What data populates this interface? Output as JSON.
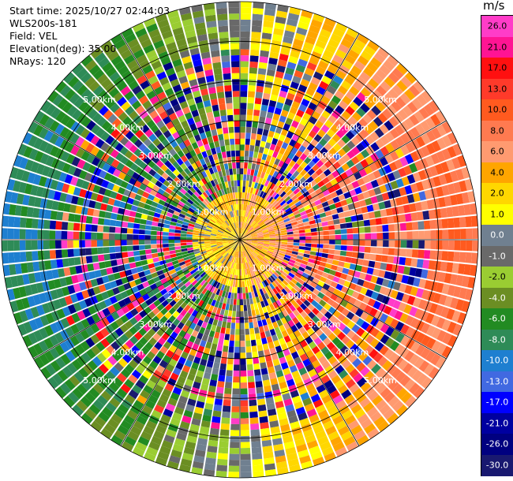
{
  "info": {
    "start_time": "Start time: 2025/10/27 02:44:03",
    "station": "WLS200s-181",
    "field": "Field: VEL",
    "elevation": "Elevation(deg): 35.00",
    "nrays": "NRays: 120"
  },
  "colorbar": {
    "unit": "m/s",
    "ticks": [
      "26.0",
      "21.0",
      "17.0",
      "13.0",
      "10.0",
      "8.0",
      "6.0",
      "4.0",
      "2.0",
      "1.0",
      "0.0",
      "-1.0",
      "-2.0",
      "-4.0",
      "-6.0",
      "-8.0",
      "-10.0",
      "-13.0",
      "-17.0",
      "-21.0",
      "-26.0",
      "-30.0"
    ],
    "colors": [
      "#ff3cc8",
      "#ff1493",
      "#ff1010",
      "#ff3a2a",
      "#ff5a1f",
      "#ff7a50",
      "#ff9a70",
      "#ffa500",
      "#ffd700",
      "#ffff00",
      "#708090",
      "#696969",
      "#9acd32",
      "#6b8e23",
      "#228b22",
      "#2e8b57",
      "#1e7fd0",
      "#4169e1",
      "#0000ff",
      "#0000a0",
      "#000080",
      "#191970"
    ],
    "label_text": [
      "#000",
      "#000",
      "#000",
      "#000",
      "#000",
      "#000",
      "#000",
      "#000",
      "#000",
      "#000",
      "#fff",
      "#fff",
      "#000",
      "#fff",
      "#fff",
      "#fff",
      "#fff",
      "#fff",
      "#fff",
      "#fff",
      "#fff",
      "#fff"
    ]
  },
  "chart_data": {
    "type": "heatmap",
    "subtype": "ppi-polar",
    "field": "VEL",
    "units": "m/s",
    "nrays": 120,
    "elevation_deg": 35.0,
    "max_range_km": 6.0,
    "range_rings_km": [
      1,
      2,
      3,
      4,
      5,
      6
    ],
    "range_labels": [
      "1.00km",
      "2.00km",
      "3.00km",
      "4.00km",
      "5.00km"
    ],
    "color_bounds": [
      -30,
      -26,
      -21,
      -17,
      -13,
      -10,
      -8,
      -6,
      -4,
      -2,
      -1,
      0,
      1,
      2,
      4,
      6,
      8,
      10,
      13,
      17,
      21,
      26,
      30
    ],
    "dominant_pattern": {
      "east_sector_ms": 9,
      "west_sector_ms": -7,
      "near_center_positive_ms": 4
    },
    "grid": true
  }
}
